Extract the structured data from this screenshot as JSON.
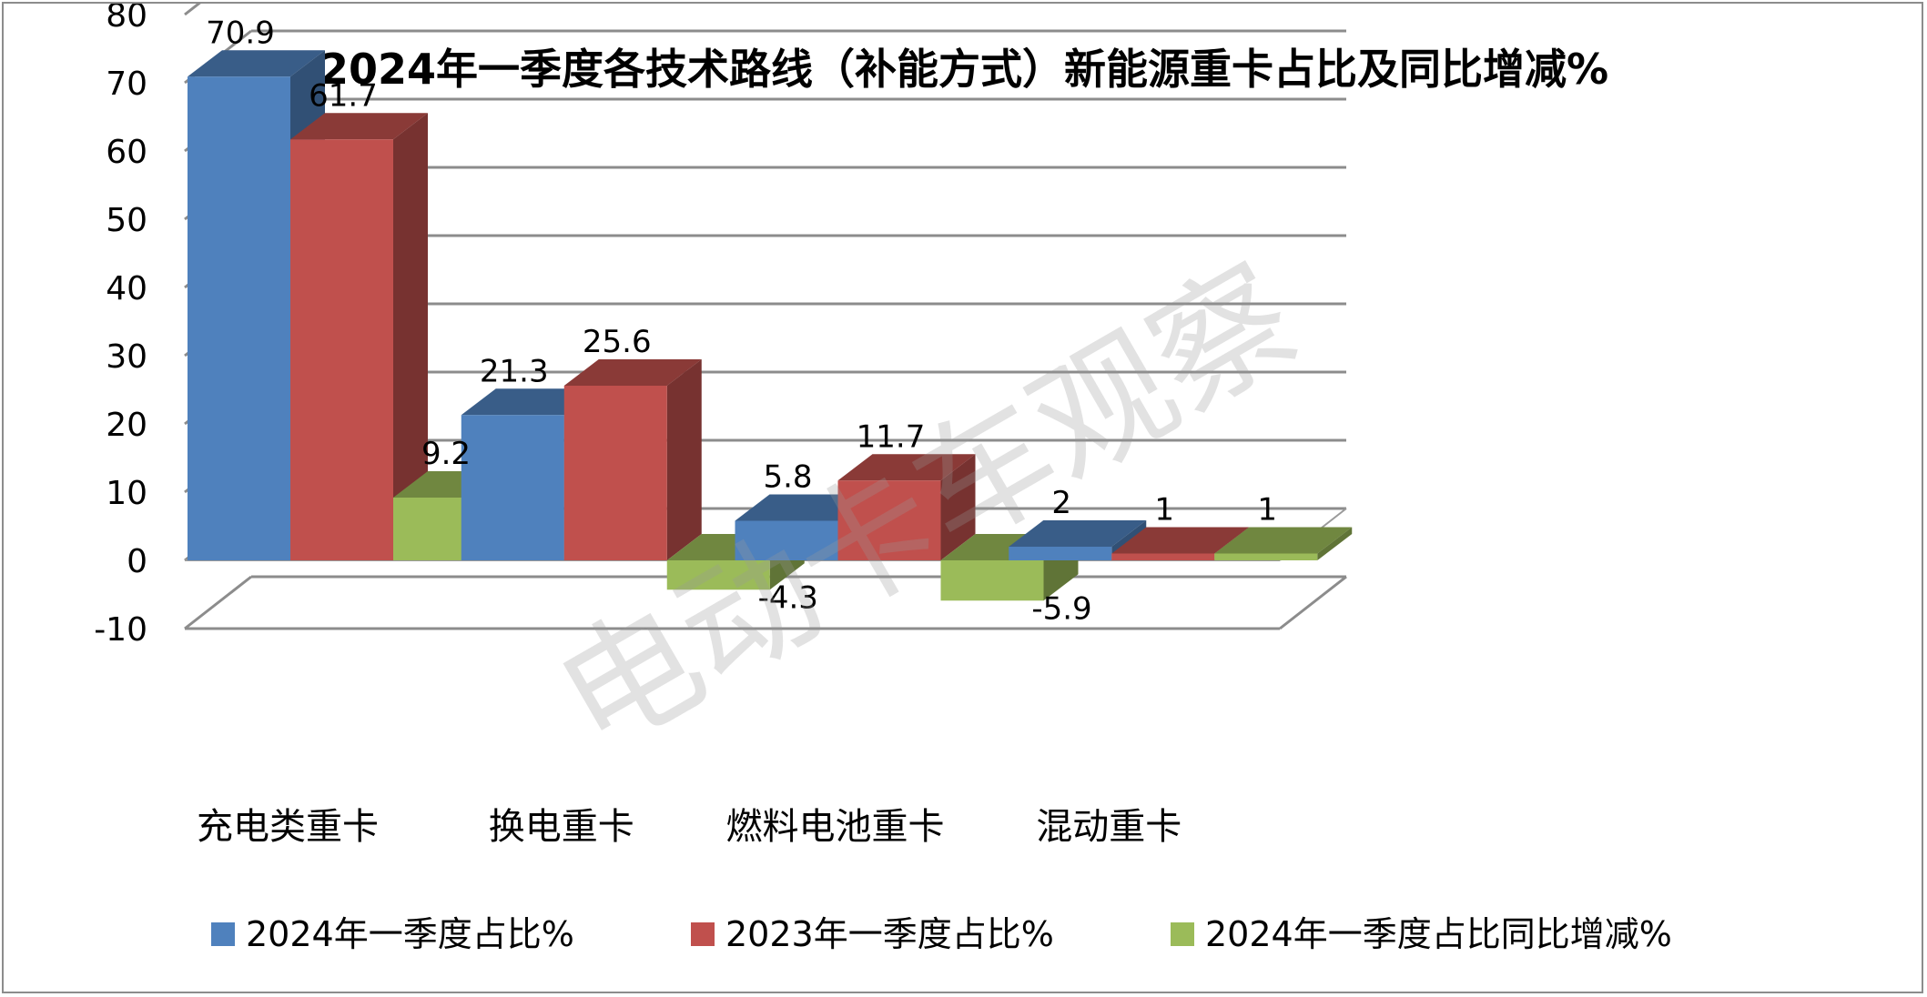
{
  "chart_data": {
    "type": "bar",
    "title": "2024年一季度各技术路线（补能方式）新能源重卡占比及同比增减%",
    "categories": [
      "充电类重卡",
      "换电重卡",
      "燃料电池重卡",
      "混动重卡"
    ],
    "series": [
      {
        "name": "2024年一季度占比%",
        "color": "#4f81bd",
        "values": [
          70.9,
          21.3,
          5.8,
          2
        ]
      },
      {
        "name": "2023年一季度占比%",
        "color": "#c0504d",
        "values": [
          61.7,
          25.6,
          11.7,
          1
        ]
      },
      {
        "name": "2024年一季度占比同比增减%",
        "color": "#9bbb59",
        "values": [
          9.2,
          -4.3,
          -5.9,
          1
        ]
      }
    ],
    "yticks": [
      -10,
      0,
      10,
      20,
      30,
      40,
      50,
      60,
      70,
      80
    ],
    "ylim": [
      -10,
      80
    ],
    "grid": true,
    "legend_position": "bottom",
    "xlabel": "",
    "ylabel": ""
  },
  "watermark": "电动卡车观察"
}
